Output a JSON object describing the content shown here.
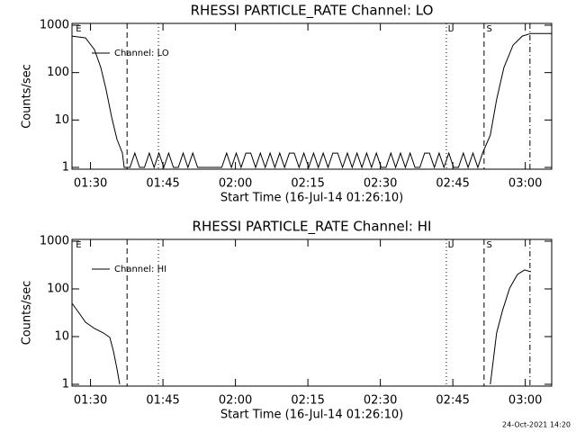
{
  "chart_data": [
    {
      "type": "line",
      "title": "RHESSI PARTICLE_RATE Channel: LO",
      "xlabel": "Start Time (16-Jul-14 01:26:10)",
      "ylabel": "Counts/sec",
      "log_y": true,
      "legend": "upper left",
      "xlim": [
        0,
        99.3
      ],
      "ylim": [
        1,
        1000
      ],
      "xticks": [
        {
          "value": 3.8333,
          "label": "01:30"
        },
        {
          "value": 18.8333,
          "label": "01:45"
        },
        {
          "value": 33.8333,
          "label": "02:00"
        },
        {
          "value": 48.8333,
          "label": "02:15"
        },
        {
          "value": 63.8333,
          "label": "02:30"
        },
        {
          "value": 78.8333,
          "label": "02:45"
        },
        {
          "value": 93.8333,
          "label": "03:00"
        }
      ],
      "yticks": [
        1,
        10,
        100,
        1000
      ],
      "markers": [
        {
          "x": 11.4,
          "style": "dashed"
        },
        {
          "x": 17.9,
          "style": "dotted"
        },
        {
          "x": 77.5,
          "style": "dotted"
        },
        {
          "x": 85.3,
          "style": "dashed"
        },
        {
          "x": 94.8,
          "style": "dashdot"
        }
      ],
      "flags": [
        {
          "x": 0.8,
          "label": "E"
        },
        {
          "x": 77.8,
          "label": "L"
        },
        {
          "x": 85.8,
          "label": "S"
        }
      ],
      "series": [
        {
          "name": "Channel: LO",
          "color": "#000000",
          "x": [
            0,
            2.8,
            4.66,
            5.96,
            7.08,
            8.2,
            9.32,
            10.43,
            10.8,
            11,
            12,
            13,
            14,
            15,
            16,
            17,
            18,
            19,
            20,
            21,
            22,
            23,
            24,
            25,
            26,
            27,
            28,
            29,
            30,
            31,
            32,
            33,
            34,
            35,
            36,
            37,
            38,
            39,
            40,
            41,
            42,
            43,
            44,
            45,
            46,
            47,
            48,
            49,
            50,
            51,
            52,
            53,
            54,
            55,
            56,
            57,
            58,
            59,
            60,
            61,
            62,
            63,
            64,
            65,
            66,
            67,
            68,
            69,
            70,
            71,
            72,
            73,
            74,
            75,
            76,
            77,
            78,
            79,
            80,
            81,
            82,
            83,
            84,
            85,
            86.6,
            87.9,
            89.4,
            91.3,
            93.2,
            95.0,
            99.3
          ],
          "values": [
            590,
            540,
            305,
            128,
            43,
            11.6,
            3.9,
            2,
            1,
            1,
            1,
            2,
            1,
            1,
            2,
            1,
            2,
            1,
            2,
            1,
            1,
            2,
            1,
            2,
            1,
            1,
            1,
            1,
            1,
            1,
            2,
            1,
            2,
            1,
            2,
            2,
            1,
            2,
            1,
            2,
            1,
            2,
            1,
            2,
            2,
            1,
            2,
            1,
            2,
            1,
            2,
            1,
            2,
            2,
            1,
            2,
            1,
            2,
            1,
            2,
            1,
            2,
            1,
            1,
            2,
            1,
            2,
            1,
            2,
            1,
            1,
            2,
            2,
            1,
            2,
            1,
            2,
            1,
            1,
            2,
            1,
            2,
            1,
            2,
            4.8,
            27,
            128,
            380,
            590,
            670,
            670
          ]
        }
      ]
    },
    {
      "type": "line",
      "title": "RHESSI PARTICLE_RATE Channel: HI",
      "xlabel": "Start Time (16-Jul-14 01:26:10)",
      "ylabel": "Counts/sec",
      "log_y": true,
      "legend": "upper left",
      "xlim": [
        0,
        99.3
      ],
      "ylim": [
        1,
        1000
      ],
      "xticks": [
        {
          "value": 3.8333,
          "label": "01:30"
        },
        {
          "value": 18.8333,
          "label": "01:45"
        },
        {
          "value": 33.8333,
          "label": "02:00"
        },
        {
          "value": 48.8333,
          "label": "02:15"
        },
        {
          "value": 63.8333,
          "label": "02:30"
        },
        {
          "value": 78.8333,
          "label": "02:45"
        },
        {
          "value": 93.8333,
          "label": "03:00"
        }
      ],
      "yticks": [
        1,
        10,
        100,
        1000
      ],
      "markers": [
        {
          "x": 11.4,
          "style": "dashed"
        },
        {
          "x": 17.9,
          "style": "dotted"
        },
        {
          "x": 77.5,
          "style": "dotted"
        },
        {
          "x": 85.3,
          "style": "dashed"
        },
        {
          "x": 94.8,
          "style": "dashdot"
        }
      ],
      "flags": [
        {
          "x": 0.8,
          "label": "E"
        },
        {
          "x": 77.8,
          "label": "L"
        },
        {
          "x": 85.8,
          "label": "S"
        }
      ],
      "series": [
        {
          "name": "Channel: HI",
          "color": "#000000",
          "x": [
            0,
            1.49,
            2.8,
            4.66,
            6.52,
            7.83,
            8.57,
            9.32,
            9.88,
            50,
            86.6,
            87.2,
            87.9,
            89.1,
            90.6,
            92.2,
            93.7,
            95.0
          ],
          "values": [
            50,
            31,
            20,
            14.8,
            11.9,
            9.6,
            5,
            2.1,
            1,
            null,
            1,
            3.2,
            11.9,
            35,
            104,
            200,
            250,
            228
          ]
        }
      ]
    }
  ],
  "footer": "24-Oct-2021 14:20"
}
